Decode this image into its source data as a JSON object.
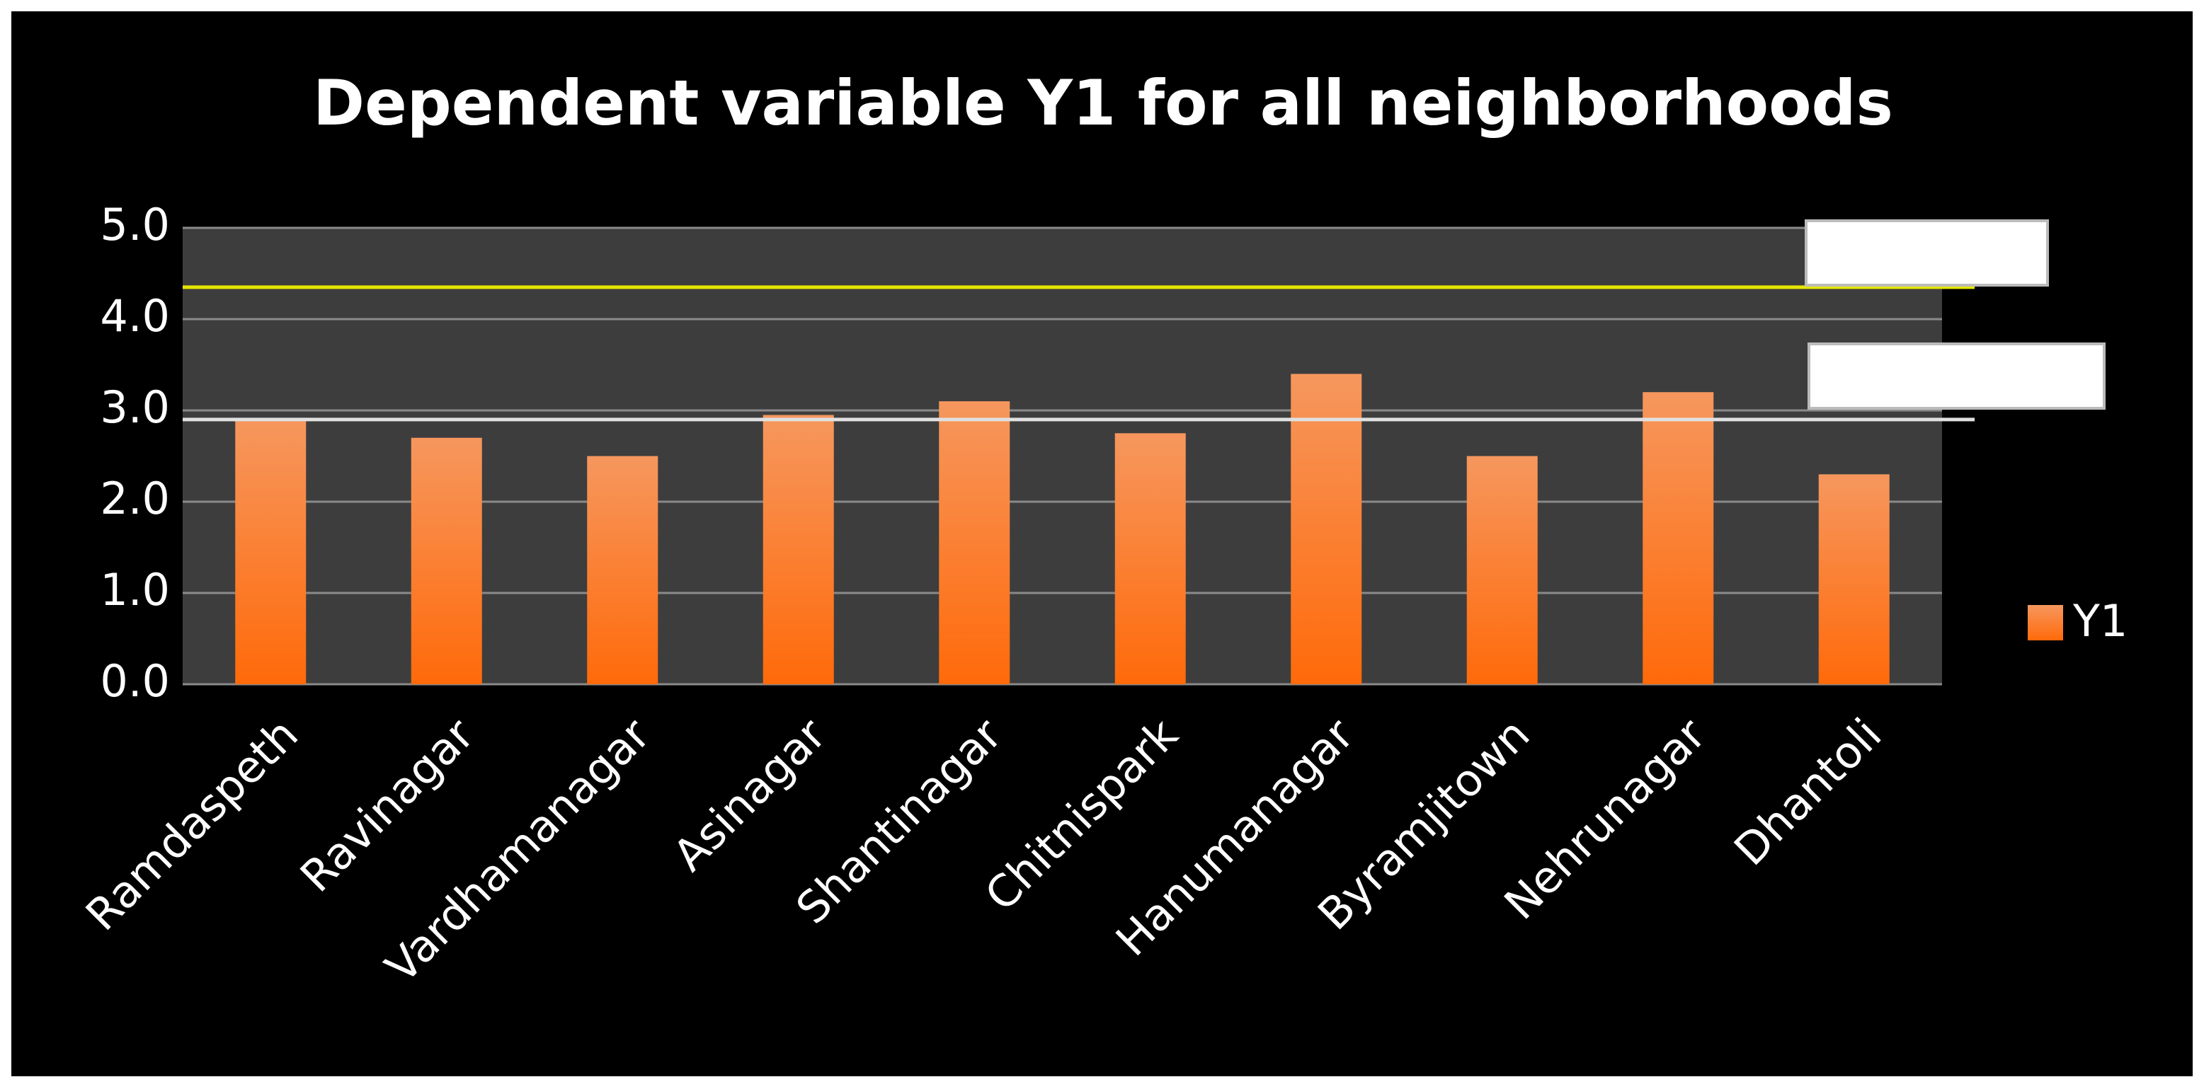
{
  "chart_data": {
    "type": "bar",
    "title": "Dependent variable Y1 for all neighborhoods",
    "categories": [
      "Ramdaspeth",
      "Ravinagar",
      "Vardhamanagar",
      "Asinagar",
      "Shantinagar",
      "Chitnispark",
      "Hanumanagar",
      "Byramjitown",
      "Nehrunagar",
      "Dhantoli"
    ],
    "series": [
      {
        "name": "Y1",
        "color": "#ff6a0a",
        "values": [
          2.9,
          2.7,
          2.5,
          2.95,
          3.1,
          2.75,
          3.4,
          2.5,
          3.2,
          2.3
        ]
      }
    ],
    "ylim": [
      0,
      5
    ],
    "yticks": [
      {
        "value": 0,
        "label": "0.0"
      },
      {
        "value": 1,
        "label": "1.0"
      },
      {
        "value": 2,
        "label": "2.0"
      },
      {
        "value": 3,
        "label": "3.0"
      },
      {
        "value": 4,
        "label": "4.0"
      },
      {
        "value": 5,
        "label": "5.0"
      }
    ],
    "grid": true,
    "reference_lines": [
      {
        "value": 4.35,
        "color": "#e6e600"
      },
      {
        "value": 2.9,
        "color": "#e0e0e0"
      }
    ],
    "legend": "right"
  }
}
